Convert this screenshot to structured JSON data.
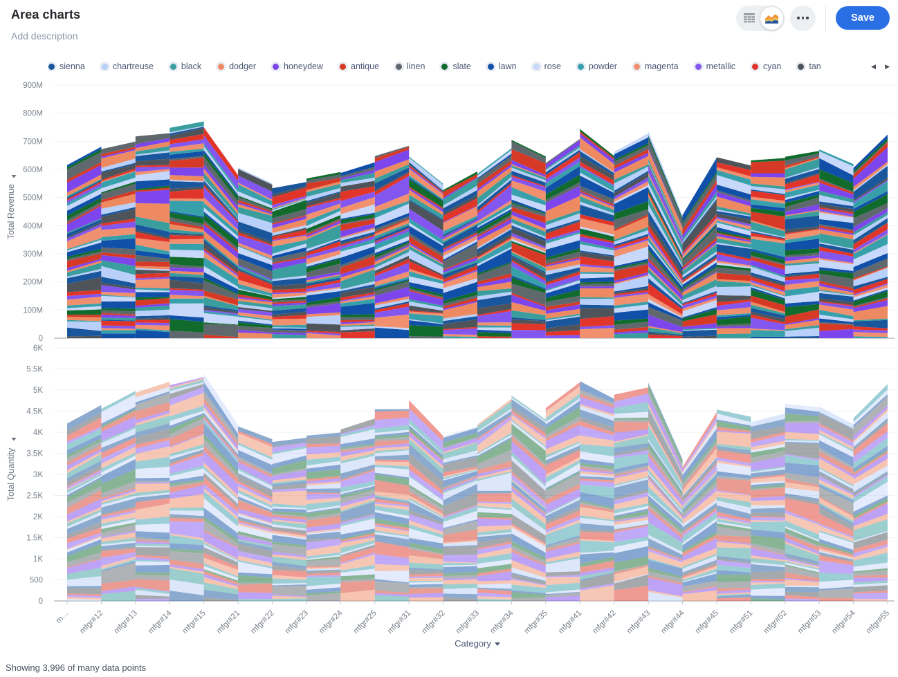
{
  "header": {
    "title": "Area charts",
    "description_placeholder": "Add description",
    "save_label": "Save",
    "accent_color": "#2b6fe4",
    "icons": [
      "table-icon",
      "area-chart-icon",
      "ellipsis-icon"
    ]
  },
  "legend": {
    "items": [
      {
        "label": "sienna",
        "color": "#1a569c"
      },
      {
        "label": "chartreuse",
        "color": "#b9d0fa"
      },
      {
        "label": "black",
        "color": "#3a9e9e"
      },
      {
        "label": "dodger",
        "color": "#ee8a62"
      },
      {
        "label": "honeydew",
        "color": "#7d46ec"
      },
      {
        "label": "antique",
        "color": "#d63a26"
      },
      {
        "label": "linen",
        "color": "#5f686d"
      },
      {
        "label": "slate",
        "color": "#116b2d"
      },
      {
        "label": "lawn",
        "color": "#1050a8"
      },
      {
        "label": "rose",
        "color": "#c7d8fa"
      },
      {
        "label": "powder",
        "color": "#38a0ab"
      },
      {
        "label": "magenta",
        "color": "#f0906e"
      },
      {
        "label": "metallic",
        "color": "#8356f0"
      },
      {
        "label": "cyan",
        "color": "#e1352a"
      },
      {
        "label": "tan",
        "color": "#4e5459"
      }
    ],
    "pager": {
      "prev": "◀",
      "next": "▶"
    }
  },
  "x_axis": {
    "title": "Category",
    "categories": [
      "m…",
      "mfgr#12",
      "mfgr#13",
      "mfgr#14",
      "mfgr#15",
      "mfgr#21",
      "mfgr#22",
      "mfgr#23",
      "mfgr#24",
      "mfgr#25",
      "mfgr#31",
      "mfgr#32",
      "mfgr#33",
      "mfgr#34",
      "mfgr#35",
      "mfgr#41",
      "mfgr#42",
      "mfgr#43",
      "mfgr#44",
      "mfgr#45",
      "mfgr#51",
      "mfgr#52",
      "mfgr#53",
      "mfgr#54",
      "mfgr#55"
    ]
  },
  "chart_data": [
    {
      "type": "area",
      "stacked": true,
      "ylabel": "Total Revenue",
      "xlabel": "Category",
      "values_unit": "millions",
      "ylim": [
        0,
        900
      ],
      "grid": true,
      "legend_position": "top",
      "series_note": "~160 stacked brand series colored by cycling the 15-color legend palette; stack totals per category estimated below (in millions)",
      "categories": [
        "m…",
        "mfgr#12",
        "mfgr#13",
        "mfgr#14",
        "mfgr#15",
        "mfgr#21",
        "mfgr#22",
        "mfgr#23",
        "mfgr#24",
        "mfgr#25",
        "mfgr#31",
        "mfgr#32",
        "mfgr#33",
        "mfgr#34",
        "mfgr#35",
        "mfgr#41",
        "mfgr#42",
        "mfgr#43",
        "mfgr#44",
        "mfgr#45",
        "mfgr#51",
        "mfgr#52",
        "mfgr#53",
        "mfgr#54",
        "mfgr#55"
      ],
      "stack_totals": [
        640,
        688,
        742,
        768,
        778,
        612,
        560,
        588,
        604,
        672,
        692,
        565,
        625,
        716,
        668,
        752,
        672,
        765,
        468,
        662,
        648,
        678,
        678,
        641,
        762
      ],
      "y_ticks": [
        {
          "value": 0,
          "label": "0"
        },
        {
          "value": 100,
          "label": "100M"
        },
        {
          "value": 200,
          "label": "200M"
        },
        {
          "value": 300,
          "label": "300M"
        },
        {
          "value": 400,
          "label": "400M"
        },
        {
          "value": 500,
          "label": "500M"
        },
        {
          "value": 600,
          "label": "600M"
        },
        {
          "value": 700,
          "label": "700M"
        },
        {
          "value": 800,
          "label": "800M"
        },
        {
          "value": 900,
          "label": "900M"
        }
      ]
    },
    {
      "type": "area",
      "stacked": true,
      "ylabel": "Total Quantity",
      "xlabel": "Category",
      "values_unit": "count",
      "ylim": [
        0,
        6000
      ],
      "grid": true,
      "legend_position": "top",
      "series_note": "same ~160 stacked brand series rendered semi-transparent; stack totals per category estimated below",
      "categories": [
        "m…",
        "mfgr#12",
        "mfgr#13",
        "mfgr#14",
        "mfgr#15",
        "mfgr#21",
        "mfgr#22",
        "mfgr#23",
        "mfgr#24",
        "mfgr#25",
        "mfgr#31",
        "mfgr#32",
        "mfgr#33",
        "mfgr#34",
        "mfgr#35",
        "mfgr#41",
        "mfgr#42",
        "mfgr#43",
        "mfgr#44",
        "mfgr#45",
        "mfgr#51",
        "mfgr#52",
        "mfgr#53",
        "mfgr#54",
        "mfgr#55"
      ],
      "stack_totals": [
        4500,
        4650,
        5150,
        5400,
        5480,
        4400,
        3900,
        4100,
        4200,
        4550,
        4800,
        4150,
        4400,
        4950,
        4600,
        5350,
        4900,
        5200,
        3400,
        4750,
        4550,
        4750,
        4800,
        4350,
        5250
      ],
      "y_ticks": [
        {
          "value": 0,
          "label": "0"
        },
        {
          "value": 500,
          "label": "500"
        },
        {
          "value": 1000,
          "label": "1K"
        },
        {
          "value": 1500,
          "label": "1.5K"
        },
        {
          "value": 2000,
          "label": "2K"
        },
        {
          "value": 2500,
          "label": "2.5K"
        },
        {
          "value": 3000,
          "label": "3K"
        },
        {
          "value": 3500,
          "label": "3.5K"
        },
        {
          "value": 4000,
          "label": "4K"
        },
        {
          "value": 4500,
          "label": "4.5K"
        },
        {
          "value": 5000,
          "label": "5K"
        },
        {
          "value": 5500,
          "label": "5.5K"
        },
        {
          "value": 6000,
          "label": "6K"
        }
      ]
    }
  ],
  "footer": {
    "note": "Showing 3,996 of many data points"
  }
}
